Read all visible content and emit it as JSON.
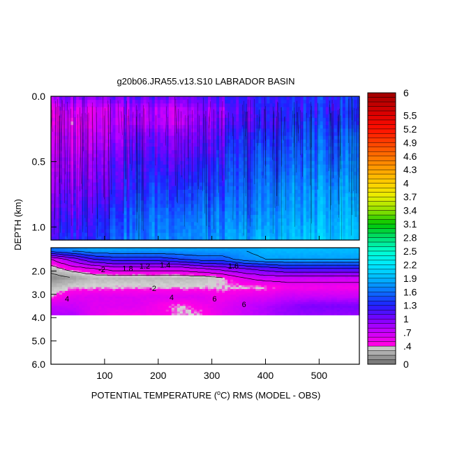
{
  "chart_data": {
    "type": "heatmap",
    "title": "g20b06.JRA55.v13.S10 LABRADOR BASIN",
    "xlabel_pre": "POTENTIAL TEMPERATURE (",
    "xlabel_sup": "o",
    "xlabel_post": "C) RMS (MODEL - OBS)",
    "ylabel": "DEPTH (km)",
    "x_range": [
      0,
      575
    ],
    "x_ticks": [
      {
        "v": 100,
        "label": "100"
      },
      {
        "v": 200,
        "label": "200"
      },
      {
        "v": 300,
        "label": "300"
      },
      {
        "v": 400,
        "label": "400"
      },
      {
        "v": 500,
        "label": "500"
      }
    ],
    "upper_panel": {
      "depth_range_km": [
        0.0,
        1.1
      ],
      "y_ticks": [
        {
          "v": 0.0,
          "label": "0.0"
        },
        {
          "v": 0.5,
          "label": "0.5"
        },
        {
          "v": 1.0,
          "label": "1.0"
        }
      ],
      "depth_profile_km": [
        0.0,
        0.1,
        0.2,
        0.3,
        0.5,
        0.7,
        0.9,
        1.1
      ],
      "x_samples": [
        0,
        40,
        80,
        120,
        160,
        200,
        240,
        280,
        320,
        360,
        400,
        440,
        480,
        520,
        575
      ],
      "values": [
        [
          0.9,
          0.6,
          0.6,
          0.7,
          0.8,
          0.9,
          1.1,
          1.2
        ],
        [
          1.0,
          0.7,
          0.6,
          0.7,
          0.8,
          1.0,
          1.1,
          1.3
        ],
        [
          1.0,
          0.7,
          0.7,
          0.8,
          1.0,
          1.1,
          1.3,
          1.4
        ],
        [
          1.1,
          0.8,
          0.8,
          0.9,
          1.1,
          1.2,
          1.4,
          1.6
        ],
        [
          1.1,
          0.8,
          0.8,
          1.0,
          1.2,
          1.3,
          1.5,
          1.6
        ],
        [
          1.1,
          0.8,
          0.8,
          1.0,
          1.2,
          1.4,
          1.6,
          1.7
        ],
        [
          1.1,
          0.8,
          0.8,
          1.0,
          1.2,
          1.4,
          1.6,
          1.8
        ],
        [
          1.1,
          0.9,
          0.9,
          1.0,
          1.2,
          1.4,
          1.6,
          1.7
        ],
        [
          1.2,
          0.9,
          1.0,
          1.1,
          1.3,
          1.4,
          1.6,
          1.7
        ],
        [
          1.2,
          1.1,
          1.1,
          1.3,
          1.4,
          1.5,
          1.6,
          1.8
        ],
        [
          1.3,
          1.2,
          1.2,
          1.3,
          1.5,
          1.6,
          1.7,
          1.9
        ],
        [
          1.3,
          1.3,
          1.3,
          1.4,
          1.5,
          1.7,
          1.8,
          1.9
        ],
        [
          1.3,
          1.3,
          1.4,
          1.5,
          1.6,
          1.7,
          1.8,
          2.0
        ],
        [
          1.4,
          1.3,
          1.4,
          1.5,
          1.6,
          1.8,
          1.9,
          2.0
        ],
        [
          1.4,
          1.4,
          1.4,
          1.6,
          1.7,
          1.8,
          1.9,
          2.0
        ]
      ]
    },
    "lower_panel": {
      "depth_range_km": [
        1.0,
        6.0
      ],
      "y_ticks": [
        {
          "v": 2.0,
          "label": "2.0"
        },
        {
          "v": 3.0,
          "label": "3.0"
        },
        {
          "v": 4.0,
          "label": "4.0"
        },
        {
          "v": 5.0,
          "label": "5.0"
        },
        {
          "v": 6.0,
          "label": "6.0"
        }
      ],
      "bottom_depth_km": 3.9,
      "depth_profile_km": [
        1.1,
        1.5,
        1.9,
        2.3,
        2.7,
        3.1,
        3.5,
        3.9
      ],
      "x_samples": [
        0,
        40,
        80,
        120,
        160,
        200,
        240,
        280,
        320,
        360,
        400,
        440,
        480,
        520,
        575
      ],
      "values": [
        [
          1.6,
          0.6,
          0.3,
          0.1,
          0.3,
          0.4,
          0.7,
          0.8
        ],
        [
          1.7,
          0.9,
          0.5,
          0.2,
          0.4,
          0.6,
          0.7,
          0.8
        ],
        [
          1.8,
          1.2,
          0.6,
          0.3,
          0.4,
          0.6,
          0.6,
          0.6
        ],
        [
          1.8,
          1.3,
          0.7,
          0.3,
          0.4,
          0.6,
          0.6,
          0.5
        ],
        [
          1.8,
          1.3,
          0.7,
          0.3,
          0.4,
          0.6,
          0.6,
          0.5
        ],
        [
          1.8,
          1.3,
          0.7,
          0.3,
          0.4,
          0.6,
          0.5,
          0.5
        ],
        [
          1.8,
          1.4,
          0.7,
          0.3,
          0.4,
          0.6,
          0.4,
          0.4
        ],
        [
          1.8,
          1.5,
          0.8,
          0.3,
          0.4,
          0.6,
          0.5,
          0.4
        ],
        [
          1.8,
          1.5,
          0.9,
          0.4,
          0.4,
          0.5,
          0.6,
          0.6
        ],
        [
          1.8,
          1.7,
          1.0,
          0.6,
          0.4,
          0.6,
          0.7,
          0.7
        ],
        [
          1.9,
          1.8,
          1.1,
          0.7,
          0.4,
          0.6,
          0.8,
          0.8
        ],
        [
          1.9,
          1.8,
          1.2,
          0.7,
          0.5,
          0.7,
          0.9,
          0.9
        ],
        [
          1.9,
          1.8,
          1.2,
          0.7,
          0.5,
          0.7,
          1.0,
          0.9
        ],
        [
          1.9,
          1.8,
          1.2,
          0.7,
          0.5,
          0.7,
          1.0,
          0.9
        ],
        [
          1.9,
          1.8,
          1.2,
          0.7,
          0.5,
          0.7,
          1.0,
          0.9
        ]
      ],
      "contour_labels": [
        {
          "text": "-2",
          "x": 95,
          "d": 2.05
        },
        {
          "text": "1.8",
          "x": 143,
          "d": 2.0
        },
        {
          "text": "1.2",
          "x": 175,
          "d": 1.9
        },
        {
          "text": "1.4",
          "x": 213,
          "d": 1.85
        },
        {
          "text": "-2",
          "x": 190,
          "d": 2.85
        },
        {
          "text": "4",
          "x": 225,
          "d": 3.25
        },
        {
          "text": "6",
          "x": 305,
          "d": 3.3
        },
        {
          "text": "6",
          "x": 360,
          "d": 3.55
        },
        {
          "text": "4",
          "x": 30,
          "d": 3.3
        },
        {
          "text": "1.6",
          "x": 340,
          "d": 1.9
        }
      ]
    },
    "colorbar": {
      "range": [
        0,
        6
      ],
      "labels": [
        {
          "v": 6,
          "label": "6"
        },
        {
          "v": 5.5,
          "label": "5.5"
        },
        {
          "v": 5.2,
          "label": "5.2"
        },
        {
          "v": 4.9,
          "label": "4.9"
        },
        {
          "v": 4.6,
          "label": "4.6"
        },
        {
          "v": 4.3,
          "label": "4.3"
        },
        {
          "v": 4.0,
          "label": "4"
        },
        {
          "v": 3.7,
          "label": "3.7"
        },
        {
          "v": 3.4,
          "label": "3.4"
        },
        {
          "v": 3.1,
          "label": "3.1"
        },
        {
          "v": 2.8,
          "label": "2.8"
        },
        {
          "v": 2.5,
          "label": "2.5"
        },
        {
          "v": 2.2,
          "label": "2.2"
        },
        {
          "v": 1.9,
          "label": "1.9"
        },
        {
          "v": 1.6,
          "label": "1.6"
        },
        {
          "v": 1.3,
          "label": "1.3"
        },
        {
          "v": 1.0,
          "label": "1"
        },
        {
          "v": 0.7,
          "label": ".7"
        },
        {
          "v": 0.4,
          "label": ".4"
        },
        {
          "v": 0.0,
          "label": "0"
        }
      ],
      "stops": [
        {
          "v": 0.0,
          "c": "#6e6e6e"
        },
        {
          "v": 0.4,
          "c": "#d4d4d4"
        },
        {
          "v": 0.45,
          "c": "#ff00e6"
        },
        {
          "v": 0.75,
          "c": "#c000ff"
        },
        {
          "v": 1.0,
          "c": "#7c00ff"
        },
        {
          "v": 1.3,
          "c": "#1f1fff"
        },
        {
          "v": 1.6,
          "c": "#0a70ff"
        },
        {
          "v": 1.9,
          "c": "#00b8ff"
        },
        {
          "v": 2.2,
          "c": "#00e8ff"
        },
        {
          "v": 2.5,
          "c": "#00ffd0"
        },
        {
          "v": 2.8,
          "c": "#00e070"
        },
        {
          "v": 3.1,
          "c": "#00c800"
        },
        {
          "v": 3.4,
          "c": "#90e000"
        },
        {
          "v": 3.7,
          "c": "#e8f000"
        },
        {
          "v": 4.0,
          "c": "#ffd000"
        },
        {
          "v": 4.3,
          "c": "#ffa000"
        },
        {
          "v": 4.6,
          "c": "#ff7000"
        },
        {
          "v": 4.9,
          "c": "#ff4000"
        },
        {
          "v": 5.2,
          "c": "#ff1000"
        },
        {
          "v": 5.5,
          "c": "#e00000"
        },
        {
          "v": 6.0,
          "c": "#a00000"
        }
      ]
    },
    "missing_color": "#ffffff"
  }
}
